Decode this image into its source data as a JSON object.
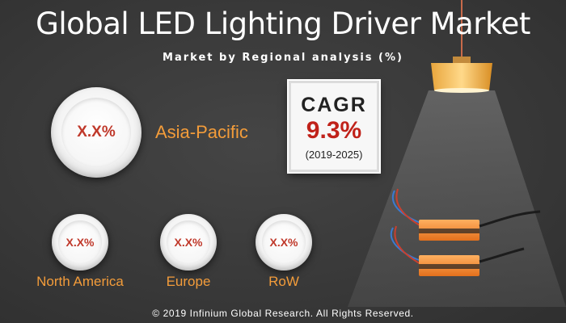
{
  "header": {
    "title": "Global LED Lighting Driver Market",
    "subtitle": "Market by Regional analysis (%)"
  },
  "regions": {
    "asia_pacific": {
      "label": "Asia-Pacific",
      "value": "X.X%"
    },
    "north_america": {
      "label": "North America",
      "value": "X.X%"
    },
    "europe": {
      "label": "Europe",
      "value": "X.X%"
    },
    "row": {
      "label": "RoW",
      "value": "X.X%"
    }
  },
  "cagr": {
    "label": "CAGR",
    "value": "9.3%",
    "period": "(2019-2025)"
  },
  "footer": {
    "copyright": "© 2019 Infinium Global Research. All Rights Reserved."
  },
  "colors": {
    "background": "#3a3a3a",
    "region_label": "#f39c3a",
    "value_text": "#c0392b",
    "cagr_value": "#c0221a"
  },
  "icons": {
    "lamp": "pendant-lamp-icon",
    "drivers": "led-driver-icon"
  }
}
